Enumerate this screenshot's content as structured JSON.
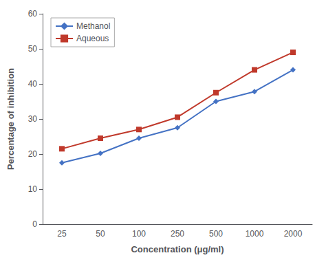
{
  "chart_data": {
    "type": "line",
    "xlabel": "Concentration (μg/ml)",
    "ylabel": "Percentage of inhibition",
    "categories": [
      "25",
      "50",
      "100",
      "250",
      "500",
      "1000",
      "2000"
    ],
    "series": [
      {
        "name": "Methanol",
        "color": "#4472C4",
        "marker": "diamond",
        "values": [
          17.5,
          20.2,
          24.5,
          27.5,
          35.0,
          37.8,
          44.0
        ]
      },
      {
        "name": "Aqueous",
        "color": "#C0392B",
        "marker": "square",
        "values": [
          21.5,
          24.5,
          27.0,
          30.5,
          37.5,
          44.0,
          49.0
        ]
      }
    ],
    "ylim": [
      0,
      60
    ],
    "yticks": [
      0,
      10,
      20,
      30,
      40,
      50,
      60
    ],
    "grid": false,
    "legend": "upper left"
  }
}
